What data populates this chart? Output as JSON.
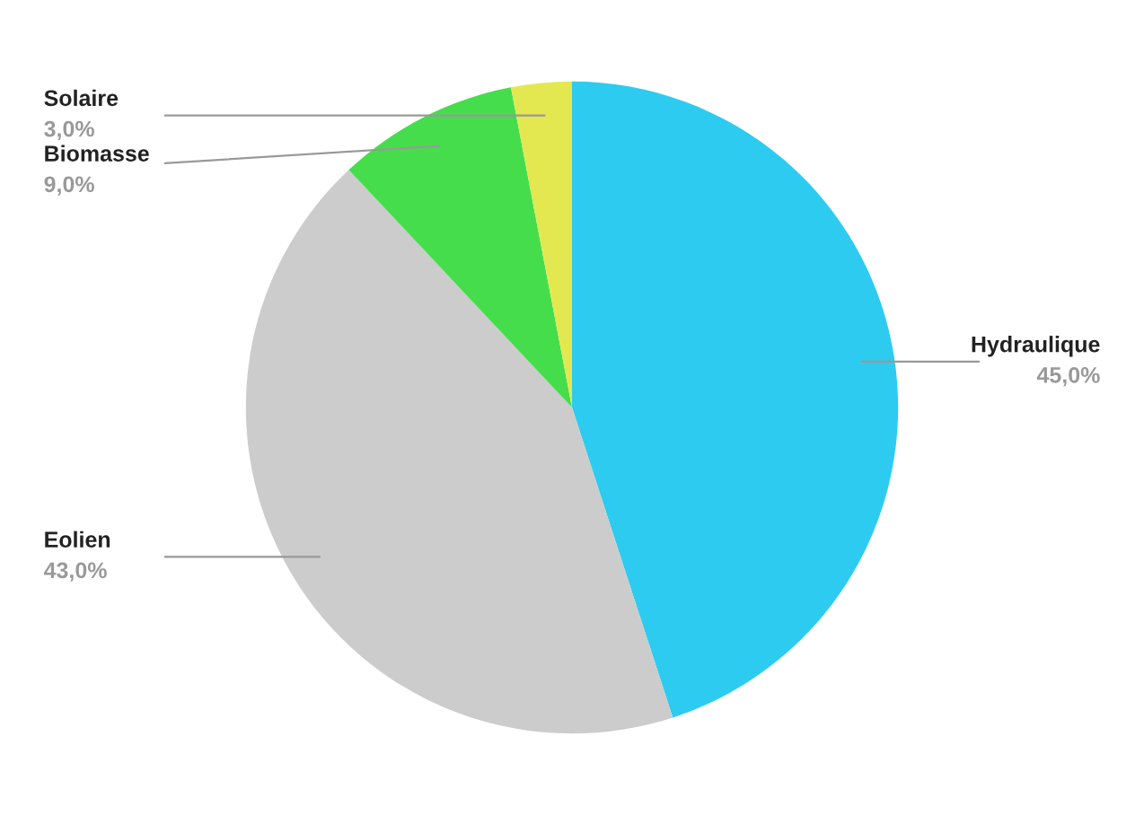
{
  "chart_data": {
    "type": "pie",
    "categories": [
      "Hydraulique",
      "Eolien",
      "Biomasse",
      "Solaire"
    ],
    "values": [
      45,
      43,
      9,
      3
    ],
    "value_labels": [
      "45,0%",
      "43,0%",
      "9,0%",
      "3,0%"
    ],
    "colors": [
      "#2ecbf0",
      "#cccccc",
      "#46dd4c",
      "#e4e850"
    ],
    "legend": false
  }
}
